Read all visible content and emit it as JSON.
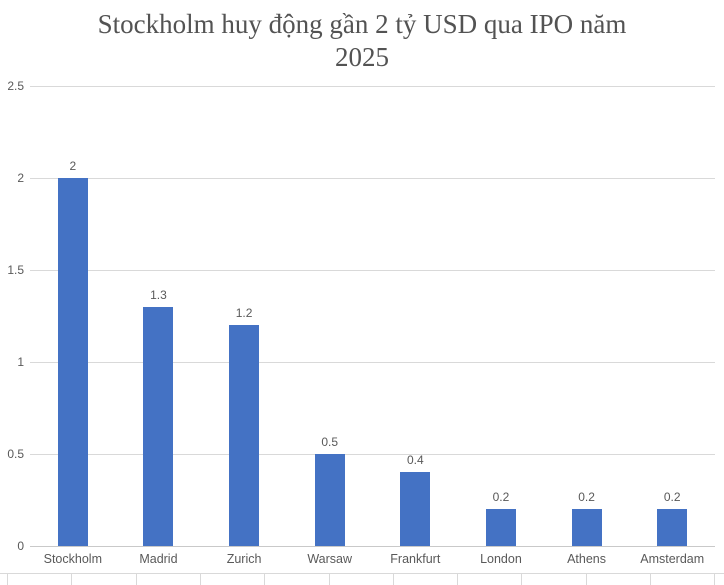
{
  "chart_data": {
    "type": "bar",
    "title": "Stockholm huy động gần 2 tỷ USD qua IPO năm 2025",
    "title_lines": [
      "Stockholm huy động gần 2 tỷ USD qua IPO năm",
      "2025"
    ],
    "categories": [
      "Stockholm",
      "Madrid",
      "Zurich",
      "Warsaw",
      "Frankfurt",
      "London",
      "Athens",
      "Amsterdam"
    ],
    "values": [
      2,
      1.3,
      1.2,
      0.5,
      0.4,
      0.2,
      0.2,
      0.2
    ],
    "value_labels": [
      "2",
      "1.3",
      "1.2",
      "0.5",
      "0.4",
      "0.2",
      "0.2",
      "0.2"
    ],
    "xlabel": "",
    "ylabel": "",
    "ylim": [
      0,
      2.5
    ],
    "yticks": [
      2.5,
      2,
      1.5,
      1,
      0.5,
      0
    ],
    "ytick_labels": [
      "2.5",
      "2",
      "1.5",
      "1",
      "0.5",
      "0"
    ],
    "grid": true,
    "legend": false,
    "colors": {
      "bar": "#4472C4",
      "axis_text": "#595959",
      "gridline": "#D9D9D9",
      "title_text": "#535353"
    }
  }
}
